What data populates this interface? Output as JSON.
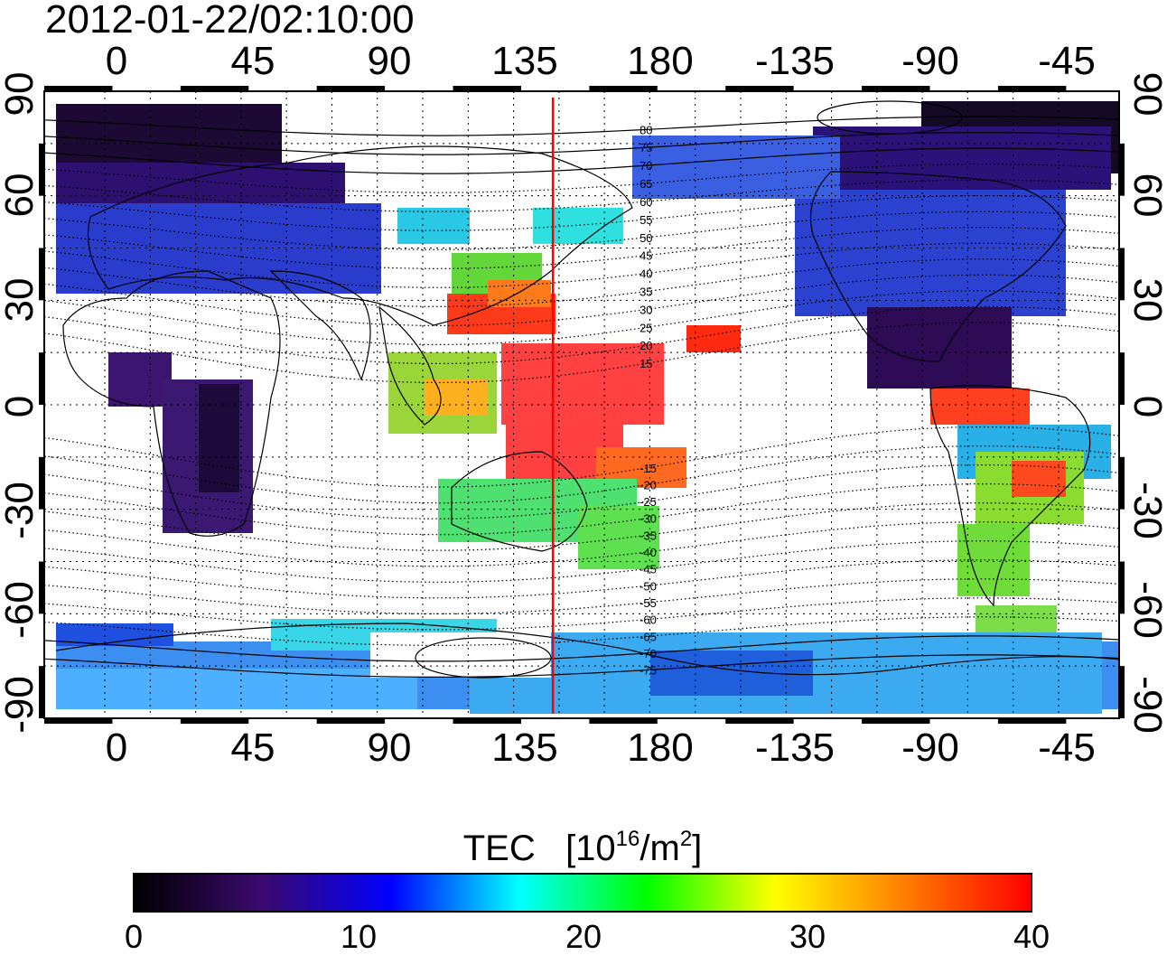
{
  "timestamp": "2012-01-22/02:10:00",
  "x_ticks": [
    "0",
    "45",
    "90",
    "135",
    "180",
    "-135",
    "-90",
    "-45"
  ],
  "y_ticks_left": [
    "90",
    "60",
    "30",
    "0",
    "-30",
    "-60",
    "-90"
  ],
  "y_ticks_right": [
    "90",
    "60",
    "30",
    "0",
    "-30",
    "-60",
    "-90"
  ],
  "contour_labels": [
    "80",
    "75",
    "70",
    "65",
    "60",
    "55",
    "50",
    "45",
    "40",
    "35",
    "30",
    "25",
    "20",
    "15",
    "-15",
    "-20",
    "-25",
    "-30",
    "-35",
    "-40",
    "-45",
    "-50",
    "-55",
    "-60",
    "-65",
    "-70",
    "-75"
  ],
  "colorbar": {
    "title": "TEC",
    "unit_prefix": "[10",
    "unit_exp1": "16",
    "unit_mid": "/m",
    "unit_exp2": "2",
    "unit_suffix": "]",
    "ticks": [
      "0",
      "10",
      "20",
      "30",
      "40"
    ],
    "range": [
      0,
      40
    ],
    "colors": [
      "#000000",
      "#3a0a6e",
      "#0000ff",
      "#00ffff",
      "#00ff00",
      "#ffff00",
      "#ff8000",
      "#ff0000"
    ]
  },
  "map": {
    "lon_start": -20,
    "lon_end": 335,
    "lat_range": [
      -90,
      90
    ],
    "marker_longitude": 148,
    "marker_color": "#ff0000"
  }
}
